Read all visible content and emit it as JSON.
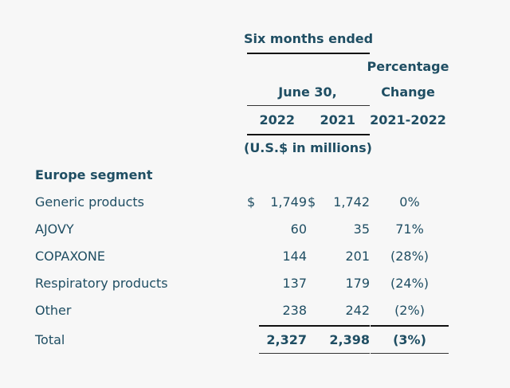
{
  "header": {
    "period": "Six months ended",
    "date": "June 30,",
    "pct_line1": "Percentage",
    "pct_line2": "Change",
    "year1": "2022",
    "year2": "2021",
    "pct_range": "2021-2022",
    "units": "(U.S.$ in millions)"
  },
  "section": "Europe segment",
  "rows": [
    {
      "label": "Generic products",
      "cur1": "$",
      "v2022": "1,749",
      "cur2": "$",
      "v2021": "1,742",
      "pct": "0%"
    },
    {
      "label": "AJOVY",
      "v2022": "60",
      "v2021": "35",
      "pct": "71%"
    },
    {
      "label": "COPAXONE",
      "v2022": "144",
      "v2021": "201",
      "pct": "(28%)"
    },
    {
      "label": "Respiratory products",
      "v2022": "137",
      "v2021": "179",
      "pct": "(24%)"
    },
    {
      "label": "Other",
      "v2022": "238",
      "v2021": "242",
      "pct": "(2%)"
    }
  ],
  "total": {
    "label": "Total",
    "v2022": "2,327",
    "v2021": "2,398",
    "pct": "(3%)"
  }
}
